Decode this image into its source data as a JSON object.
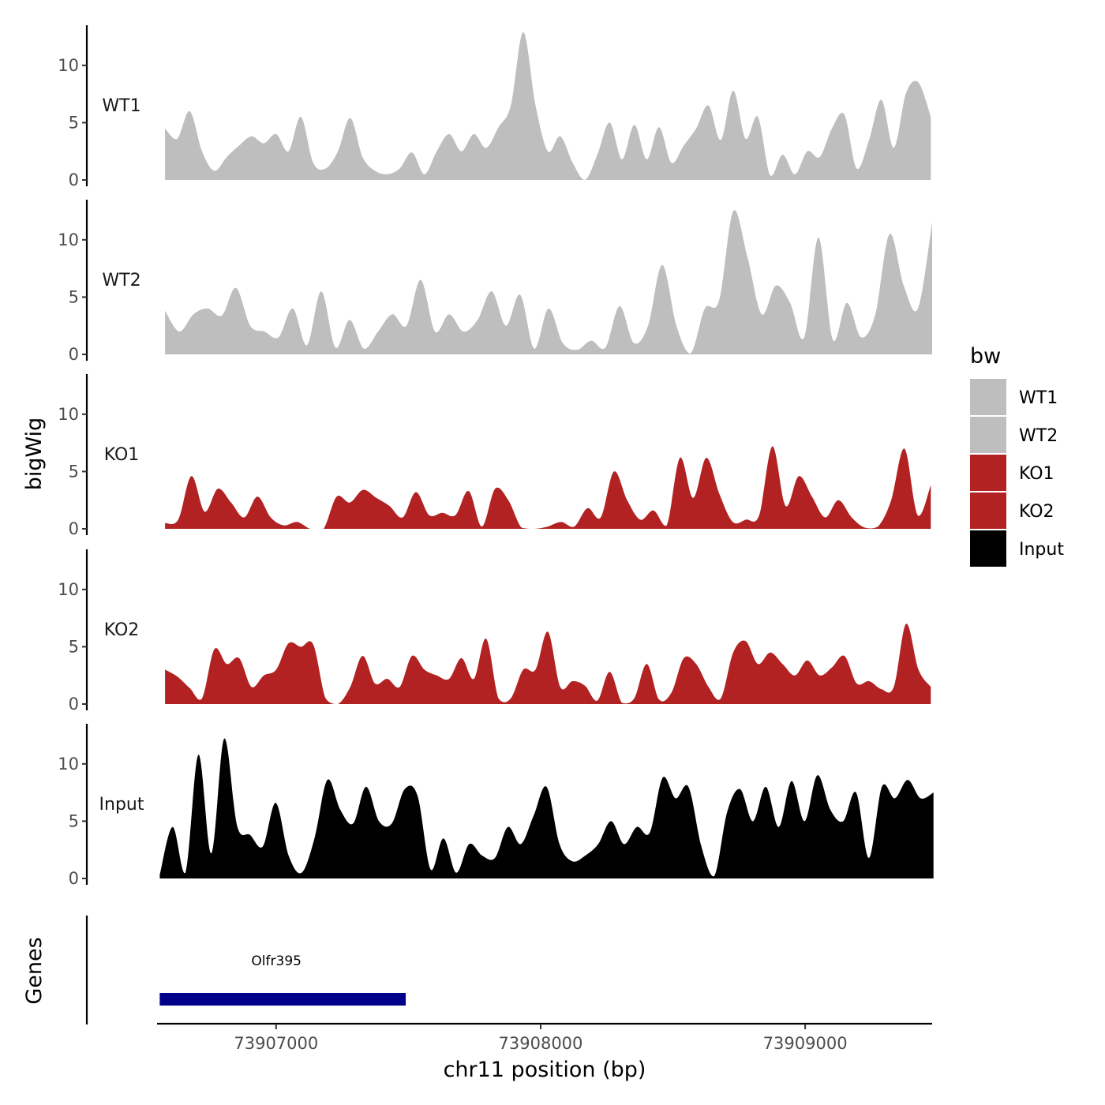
{
  "chart_data": {
    "type": "area",
    "y_axis_title": "bigWig",
    "genes_axis_title": "Genes",
    "x_axis_title": "chr11 position (bp)",
    "xlim": [
      73906550,
      73909480
    ],
    "x_ticks": [
      73907000,
      73908000,
      73909000
    ],
    "x_tick_labels": [
      "73907000",
      "73908000",
      "73909000"
    ],
    "ylim": [
      0,
      13.5
    ],
    "y_ticks": [
      0,
      5,
      10
    ],
    "y_tick_labels": [
      "0",
      "5",
      "10"
    ],
    "legend": {
      "title": "bw",
      "entries": [
        {
          "label": "WT1",
          "color": "#bebebe"
        },
        {
          "label": "WT2",
          "color": "#bebebe"
        },
        {
          "label": "KO1",
          "color": "#b22222"
        },
        {
          "label": "KO2",
          "color": "#b22222"
        },
        {
          "label": "Input",
          "color": "#000000"
        }
      ]
    },
    "tracks": [
      {
        "name": "WT1",
        "color": "#bebebe",
        "x_start": 73906580,
        "x_end": 73909475,
        "values": [
          4.5,
          3.6,
          6.0,
          2.5,
          0.8,
          2.0,
          3.0,
          3.8,
          3.2,
          4.0,
          2.5,
          5.5,
          1.5,
          1.0,
          2.5,
          5.4,
          2.0,
          0.8,
          0.5,
          1.0,
          2.4,
          0.5,
          2.5,
          4.0,
          2.5,
          4.0,
          2.8,
          4.6,
          6.5,
          12.9,
          6.5,
          2.5,
          3.8,
          1.5,
          0.0,
          2.2,
          5.0,
          1.8,
          4.8,
          1.8,
          4.6,
          1.5,
          3.0,
          4.5,
          6.5,
          3.5,
          7.8,
          3.6,
          5.5,
          0.4,
          2.2,
          0.5,
          2.5,
          2.0,
          4.5,
          5.7,
          1.0,
          3.5,
          7.0,
          2.8,
          7.6,
          8.5,
          5.5
        ]
      },
      {
        "name": "WT2",
        "color": "#bebebe",
        "x_start": 73906580,
        "x_end": 73909480,
        "values": [
          3.8,
          2.0,
          3.5,
          4.0,
          3.4,
          5.8,
          2.5,
          2.0,
          1.5,
          4.0,
          0.8,
          5.5,
          0.6,
          3.0,
          0.5,
          2.0,
          3.5,
          2.5,
          6.5,
          2.0,
          3.5,
          2.0,
          3.0,
          5.5,
          2.5,
          5.2,
          0.5,
          4.0,
          1.0,
          0.4,
          1.2,
          0.6,
          4.2,
          1.0,
          2.5,
          7.8,
          2.5,
          0.1,
          4.0,
          4.7,
          12.5,
          8.5,
          3.5,
          6.0,
          4.5,
          1.5,
          10.2,
          1.3,
          4.5,
          1.5,
          3.5,
          10.5,
          6.0,
          4.0,
          11.5
        ]
      },
      {
        "name": "KO1",
        "color": "#b22222",
        "x_start": 73906580,
        "x_end": 73909475,
        "values": [
          0.5,
          0.8,
          4.6,
          1.5,
          3.5,
          2.3,
          1.0,
          2.8,
          1.0,
          0.3,
          0.6,
          0.0,
          0.0,
          2.8,
          2.3,
          3.4,
          2.7,
          2.0,
          1.0,
          3.2,
          1.2,
          1.4,
          1.2,
          3.3,
          0.2,
          3.5,
          2.5,
          0.1,
          0.0,
          0.2,
          0.6,
          0.2,
          1.8,
          1.0,
          5.0,
          2.5,
          0.8,
          1.6,
          0.3,
          6.2,
          2.7,
          6.2,
          3.0,
          0.6,
          0.8,
          1.2,
          7.2,
          2.0,
          4.6,
          2.8,
          1.0,
          2.5,
          1.0,
          0.1,
          0.2,
          2.5,
          7.0,
          1.2,
          3.8
        ]
      },
      {
        "name": "KO2",
        "color": "#b22222",
        "x_start": 73906580,
        "x_end": 73909475,
        "values": [
          3.0,
          2.4,
          1.4,
          0.5,
          4.8,
          3.5,
          4.0,
          1.5,
          2.5,
          3.0,
          5.3,
          5.0,
          5.2,
          0.5,
          0.0,
          1.5,
          4.2,
          1.8,
          2.2,
          1.5,
          4.2,
          3.0,
          2.5,
          2.2,
          4.0,
          2.2,
          5.7,
          0.5,
          0.5,
          3.0,
          3.0,
          6.3,
          1.5,
          2.0,
          1.6,
          0.3,
          2.8,
          0.1,
          0.5,
          3.5,
          0.4,
          1.0,
          4.0,
          3.5,
          1.5,
          0.5,
          4.5,
          5.5,
          3.5,
          4.5,
          3.5,
          2.5,
          3.8,
          2.5,
          3.2,
          4.2,
          1.8,
          2.0,
          1.3,
          1.5,
          7.0,
          3.0,
          1.5
        ]
      },
      {
        "name": "Input",
        "color": "#000000",
        "x_start": 73906560,
        "x_end": 73909485,
        "values": [
          0.3,
          4.5,
          0.5,
          10.8,
          2.2,
          12.2,
          4.6,
          3.8,
          2.8,
          6.6,
          2.0,
          0.5,
          3.5,
          8.6,
          6.0,
          4.8,
          8.0,
          5.0,
          4.8,
          7.8,
          7.2,
          0.8,
          3.5,
          0.5,
          3.0,
          2.0,
          1.8,
          4.5,
          3.0,
          5.5,
          8.0,
          3.0,
          1.5,
          2.0,
          3.0,
          5.0,
          3.0,
          4.5,
          4.0,
          8.8,
          7.0,
          8.0,
          2.8,
          0.2,
          5.8,
          7.8,
          5.0,
          8.0,
          4.5,
          8.5,
          5.0,
          9.0,
          6.0,
          5.0,
          7.5,
          1.8,
          8.0,
          7.0,
          8.6,
          7.0,
          7.5
        ]
      }
    ],
    "genes": [
      {
        "name": "Olfr395",
        "start": 73906560,
        "end": 73907490,
        "color": "#00008b"
      }
    ]
  }
}
